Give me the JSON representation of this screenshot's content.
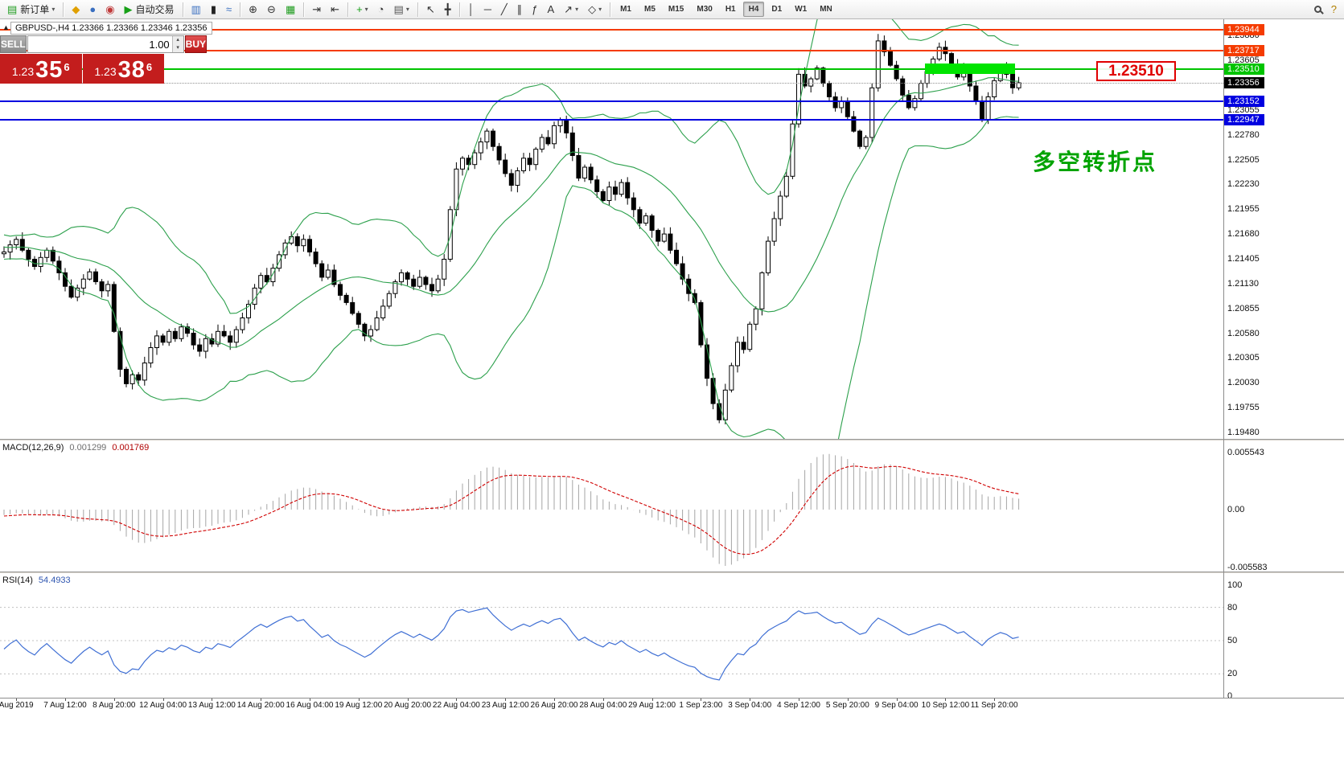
{
  "toolbar": {
    "items": [
      {
        "t": "btn",
        "name": "new-order-button",
        "glyph": "▤",
        "gc": "#1e9c1e",
        "label": "新订单",
        "dd": true
      },
      {
        "t": "sep"
      },
      {
        "t": "btn",
        "name": "metaeditor-icon",
        "glyph": "◆",
        "gc": "#e0a000"
      },
      {
        "t": "btn",
        "name": "profile-icon",
        "glyph": "●",
        "gc": "#3a6fc0"
      },
      {
        "t": "btn",
        "name": "community-icon",
        "glyph": "◉",
        "gc": "#c03a3a"
      },
      {
        "t": "btn",
        "name": "autotrading-button",
        "glyph": "▶",
        "gc": "#17a017",
        "label": "自动交易"
      },
      {
        "t": "sep"
      },
      {
        "t": "btn",
        "name": "bar-chart-icon",
        "glyph": "▥",
        "gc": "#3a6fc0"
      },
      {
        "t": "btn",
        "name": "candlestick-chart-icon",
        "glyph": "▮",
        "gc": "#222222"
      },
      {
        "t": "btn",
        "name": "line-chart-icon",
        "glyph": "≈",
        "gc": "#3a6fc0"
      },
      {
        "t": "sep"
      },
      {
        "t": "btn",
        "name": "zoom-in-icon",
        "glyph": "⊕",
        "gc": "#333333"
      },
      {
        "t": "btn",
        "name": "zoom-out-icon",
        "glyph": "⊖",
        "gc": "#333333"
      },
      {
        "t": "btn",
        "name": "tile-windows-icon",
        "glyph": "▦",
        "gc": "#1e9c1e"
      },
      {
        "t": "sep"
      },
      {
        "t": "btn",
        "name": "auto-scroll-icon",
        "glyph": "⇥",
        "gc": "#333333"
      },
      {
        "t": "btn",
        "name": "chart-shift-icon",
        "glyph": "⇤",
        "gc": "#333333"
      },
      {
        "t": "sep"
      },
      {
        "t": "btn",
        "name": "indicators-button",
        "glyph": "+",
        "gc": "#17a017",
        "dd": true
      },
      {
        "t": "btn",
        "name": "period-clock-icon",
        "glyph": "◔",
        "gc": "#333333"
      },
      {
        "t": "btn",
        "name": "templates-icon",
        "glyph": "▤",
        "gc": "#555555",
        "dd": true
      },
      {
        "t": "sep"
      },
      {
        "t": "btn",
        "name": "cursor-icon",
        "glyph": "↖",
        "gc": "#333333"
      },
      {
        "t": "btn",
        "name": "crosshair-icon",
        "glyph": "╋",
        "gc": "#333333"
      },
      {
        "t": "sep"
      },
      {
        "t": "btn",
        "name": "vertical-line-icon",
        "glyph": "│",
        "gc": "#333333"
      },
      {
        "t": "btn",
        "name": "horizontal-line-icon",
        "glyph": "─",
        "gc": "#333333"
      },
      {
        "t": "btn",
        "name": "trendline-icon",
        "glyph": "╱",
        "gc": "#333333"
      },
      {
        "t": "btn",
        "name": "channel-icon",
        "glyph": "∥",
        "gc": "#333333"
      },
      {
        "t": "btn",
        "name": "fibonacci-icon",
        "glyph": "ƒ",
        "gc": "#333333"
      },
      {
        "t": "btn",
        "name": "text-label-icon",
        "glyph": "A",
        "gc": "#333333"
      },
      {
        "t": "btn",
        "name": "arrows-icon",
        "glyph": "↗",
        "gc": "#333333",
        "dd": true
      },
      {
        "t": "btn",
        "name": "shapes-icon",
        "glyph": "◇",
        "gc": "#333333",
        "dd": true
      },
      {
        "t": "sep"
      },
      {
        "t": "tf",
        "name": "timeframe-m1-button",
        "label": "M1"
      },
      {
        "t": "tf",
        "name": "timeframe-m5-button",
        "label": "M5"
      },
      {
        "t": "tf",
        "name": "timeframe-m15-button",
        "label": "M15"
      },
      {
        "t": "tf",
        "name": "timeframe-m30-button",
        "label": "M30"
      },
      {
        "t": "tf",
        "name": "timeframe-h1-button",
        "label": "H1"
      },
      {
        "t": "tf",
        "name": "timeframe-h4-button",
        "label": "H4",
        "active": true
      },
      {
        "t": "tf",
        "name": "timeframe-d1-button",
        "label": "D1"
      },
      {
        "t": "tf",
        "name": "timeframe-w1-button",
        "label": "W1"
      },
      {
        "t": "tf",
        "name": "timeframe-mn-button",
        "label": "MN"
      },
      {
        "t": "spacer"
      },
      {
        "t": "btn",
        "name": "search-icon",
        "glyph": "mag"
      },
      {
        "t": "btn",
        "name": "help-icon",
        "glyph": "?",
        "gc": "#b08000"
      }
    ]
  },
  "chart": {
    "collapse_arrow": "▲",
    "symbol_header": "GBPUSD-,H4  1.23366 1.23366 1.23346 1.23356",
    "trade_panel": {
      "sell_label": "SELL",
      "buy_label": "BUY",
      "volume": "1.00",
      "spin_up": "▴",
      "spin_down": "▾",
      "sell_price": {
        "prefix": "1.23",
        "big": "35",
        "sup": "6"
      },
      "buy_price": {
        "prefix": "1.23",
        "big": "38",
        "sup": "6"
      }
    },
    "annotation": "多空转折点",
    "price_label_box": "1.23510"
  },
  "indicators": {
    "macd": {
      "name": "MACD(12,26,9)",
      "value": "0.001299",
      "signal": "0.001769",
      "scale": [
        "0.005543",
        "0.00",
        "-0.005583"
      ]
    },
    "rsi": {
      "name": "RSI(14)",
      "value": "54.4933",
      "levels": [
        "100",
        "80",
        "50",
        "20",
        "0"
      ]
    }
  },
  "chart_data": {
    "type": "candlestick",
    "symbol": "GBPUSD",
    "timeframe": "H4",
    "current_ohlc": {
      "open": 1.23366,
      "high": 1.23366,
      "low": 1.23346,
      "close": 1.23356
    },
    "bid": 1.23356,
    "ask": 1.23386,
    "price_axis": {
      "max": 1.23944,
      "min": 1.1948,
      "ticks": [
        "1.23880",
        "1.23605",
        "1.23055",
        "1.22780",
        "1.22505",
        "1.22230",
        "1.21955",
        "1.21680",
        "1.21405",
        "1.21130",
        "1.20855",
        "1.20580",
        "1.20305",
        "1.20030",
        "1.19755",
        "1.19480"
      ],
      "markers": [
        {
          "label": "1.23944",
          "price": 1.23944,
          "bg": "#f53b00"
        },
        {
          "label": "1.23717",
          "price": 1.23717,
          "bg": "#f53b00"
        },
        {
          "label": "1.23510",
          "price": 1.2351,
          "bg": "#00c400"
        },
        {
          "label": "1.23356",
          "price": 1.23356,
          "bg": "#000000"
        },
        {
          "label": "1.23152",
          "price": 1.23152,
          "bg": "#0000e0"
        },
        {
          "label": "1.22947",
          "price": 1.22947,
          "bg": "#0000e0"
        }
      ]
    },
    "hlines": [
      {
        "price": 1.23944,
        "color": "#f53b00",
        "h": 2,
        "style": "solid"
      },
      {
        "price": 1.23717,
        "color": "#f53b00",
        "h": 2,
        "style": "solid"
      },
      {
        "price": 1.2351,
        "color": "#00c400",
        "h": 2,
        "style": "solid"
      },
      {
        "price": 1.23356,
        "color": "#909090",
        "h": 1,
        "style": "dotted"
      },
      {
        "price": 1.23152,
        "color": "#0000e0",
        "h": 2,
        "style": "solid"
      },
      {
        "price": 1.22947,
        "color": "#0000e0",
        "h": 2,
        "style": "solid"
      }
    ],
    "band": {
      "price": 1.2351,
      "from_bar": 151,
      "to_bar": 165
    },
    "time_labels": [
      {
        "text": "Aug 2019",
        "bar": 2
      },
      {
        "text": "7 Aug 12:00",
        "bar": 10
      },
      {
        "text": "8 Aug 20:00",
        "bar": 18
      },
      {
        "text": "12 Aug 04:00",
        "bar": 26
      },
      {
        "text": "13 Aug 12:00",
        "bar": 34
      },
      {
        "text": "14 Aug 20:00",
        "bar": 42
      },
      {
        "text": "16 Aug 04:00",
        "bar": 50
      },
      {
        "text": "19 Aug 12:00",
        "bar": 58
      },
      {
        "text": "20 Aug 20:00",
        "bar": 66
      },
      {
        "text": "22 Aug 04:00",
        "bar": 74
      },
      {
        "text": "23 Aug 12:00",
        "bar": 82
      },
      {
        "text": "26 Aug 20:00",
        "bar": 90
      },
      {
        "text": "28 Aug 04:00",
        "bar": 98
      },
      {
        "text": "29 Aug 12:00",
        "bar": 106
      },
      {
        "text": "1 Sep 23:00",
        "bar": 114
      },
      {
        "text": "3 Sep 04:00",
        "bar": 122
      },
      {
        "text": "4 Sep 12:00",
        "bar": 130
      },
      {
        "text": "5 Sep 20:00",
        "bar": 138
      },
      {
        "text": "9 Sep 04:00",
        "bar": 146
      },
      {
        "text": "10 Sep 12:00",
        "bar": 154
      },
      {
        "text": "11 Sep 20:00",
        "bar": 162
      }
    ],
    "warmup_closes": [
      1.2212,
      1.2205,
      1.2198,
      1.2208,
      1.2195,
      1.2188,
      1.2192,
      1.218,
      1.2172,
      1.2178,
      1.2165,
      1.2158,
      1.2162,
      1.217,
      1.216,
      1.2152,
      1.2158,
      1.2148,
      1.2155,
      1.2162,
      1.217,
      1.2165,
      1.2155,
      1.2148,
      1.2152,
      1.216,
      1.2168,
      1.2158,
      1.215,
      1.2145,
      1.2152,
      1.2158,
      1.215,
      1.2142,
      1.2148,
      1.2155,
      1.2162,
      1.2158,
      1.215,
      1.2146
    ],
    "closes": [
      1.2148,
      1.2156,
      1.2162,
      1.215,
      1.214,
      1.2132,
      1.2142,
      1.215,
      1.2138,
      1.2125,
      1.211,
      1.2098,
      1.2108,
      1.2118,
      1.2126,
      1.2115,
      1.2105,
      1.2112,
      1.206,
      1.2018,
      1.2002,
      1.2012,
      1.2006,
      1.2025,
      1.2042,
      1.2055,
      1.2048,
      1.206,
      1.2052,
      1.2065,
      1.2058,
      1.2045,
      1.2038,
      1.2052,
      1.2046,
      1.206,
      1.2055,
      1.2048,
      1.2062,
      1.2075,
      1.209,
      1.2108,
      1.2122,
      1.2115,
      1.213,
      1.2145,
      1.2158,
      1.2165,
      1.2155,
      1.2162,
      1.2148,
      1.2135,
      1.212,
      1.2128,
      1.2112,
      1.21,
      1.2092,
      1.208,
      1.2068,
      1.2055,
      1.2062,
      1.2075,
      1.2088,
      1.2102,
      1.2115,
      1.2125,
      1.2118,
      1.211,
      1.212,
      1.2112,
      1.2105,
      1.2118,
      1.214,
      1.2195,
      1.224,
      1.2252,
      1.2245,
      1.2258,
      1.227,
      1.2282,
      1.2265,
      1.225,
      1.2235,
      1.2222,
      1.2238,
      1.2252,
      1.2245,
      1.2262,
      1.2275,
      1.2268,
      1.2288,
      1.2295,
      1.228,
      1.2255,
      1.223,
      1.2242,
      1.2228,
      1.2215,
      1.2205,
      1.222,
      1.2212,
      1.2225,
      1.2208,
      1.2195,
      1.218,
      1.2188,
      1.2172,
      1.216,
      1.2168,
      1.215,
      1.2135,
      1.2118,
      1.2102,
      1.2092,
      1.2045,
      1.2008,
      1.198,
      1.1962,
      1.1995,
      1.2022,
      1.2048,
      1.204,
      1.2068,
      1.2085,
      1.2125,
      1.216,
      1.2185,
      1.221,
      1.2232,
      1.229,
      1.2345,
      1.2332,
      1.234,
      1.2352,
      1.2335,
      1.232,
      1.2308,
      1.2315,
      1.2298,
      1.2282,
      1.2265,
      1.2275,
      1.233,
      1.2382,
      1.237,
      1.2355,
      1.234,
      1.2322,
      1.2308,
      1.2318,
      1.2335,
      1.2348,
      1.2362,
      1.2375,
      1.2368,
      1.2355,
      1.2342,
      1.235,
      1.2332,
      1.2315,
      1.2295,
      1.232,
      1.2338,
      1.2352,
      1.2345,
      1.233,
      1.23356
    ],
    "indicator_params": {
      "bollinger_period": 20,
      "bollinger_dev": 2,
      "macd": [
        12,
        26,
        9
      ],
      "rsi": 14
    },
    "colors": {
      "bull": "#ffffff",
      "bear": "#000000",
      "outline": "#000000",
      "bollinger": "#2ca04c",
      "macd_hist": "#a6a6a6",
      "macd_signal": "#d00000",
      "rsi_line": "#3f6fd4",
      "rsi_levels": "#c0c0c0",
      "band": "#00e400"
    }
  }
}
